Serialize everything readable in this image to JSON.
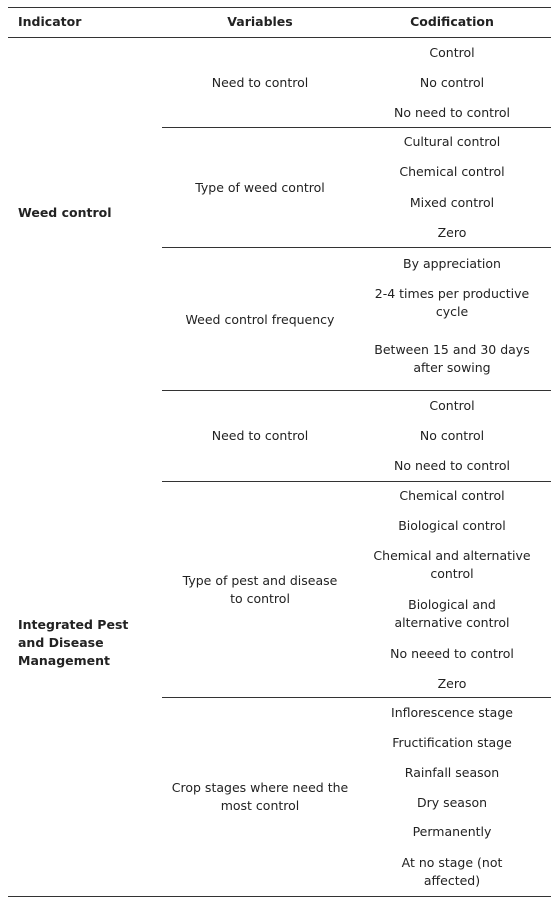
{
  "table": {
    "header": [
      "Indicator",
      "Variables",
      "Codification"
    ],
    "groups": [
      {
        "indicator": "Weed control",
        "variables": [
          {
            "name": "Need to control",
            "codes": [
              "Control",
              "No control",
              "No need to control"
            ]
          },
          {
            "name": "Type of weed control",
            "codes": [
              "Cultural control",
              "Chemical control",
              "Mixed control",
              "Zero"
            ]
          },
          {
            "name": "Weed control frequency",
            "codes": [
              "By appreciation",
              "2-4 times per productive cycle",
              "Between 15 and 30 days after sowing"
            ]
          }
        ]
      },
      {
        "indicator": "Integrated Pest and Disease Management",
        "variables": [
          {
            "name": "Need to control",
            "codes": [
              "Control",
              "No control",
              "No need to control"
            ]
          },
          {
            "name": "Type of pest and disease to control",
            "codes": [
              "Chemical control",
              "Biological control",
              "Chemical and alternative control",
              "Biological and alternative control",
              "No neeed to control",
              "Zero"
            ]
          },
          {
            "name": "Crop stages where need the most control",
            "codes": [
              "Inflorescence stage",
              "Fructification stage",
              "Rainfall season",
              "Dry season",
              "Permanently",
              "At no stage (not affected)"
            ]
          }
        ]
      }
    ]
  }
}
